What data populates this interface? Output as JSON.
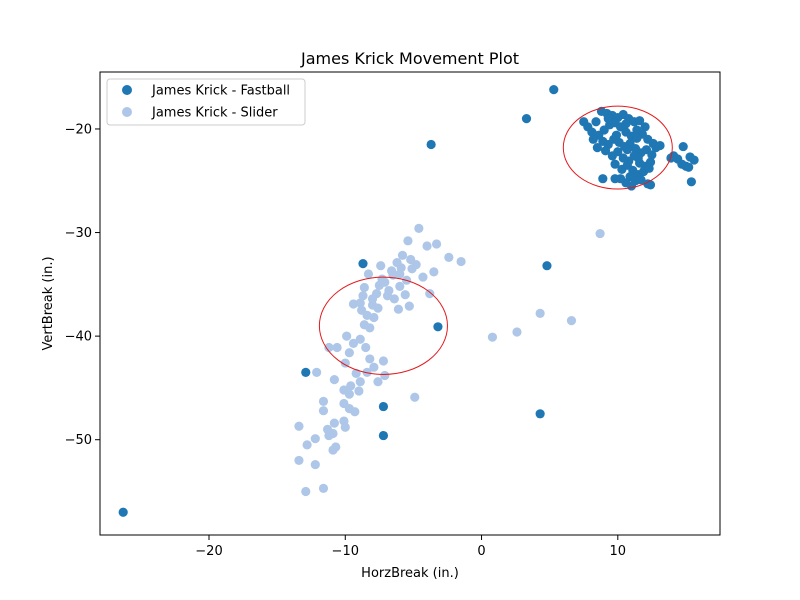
{
  "chart_data": {
    "type": "scatter",
    "title": "James Krick Movement Plot",
    "xlabel": "HorzBreak (in.)",
    "ylabel": "VertBreak (in.)",
    "xlim": [
      -28,
      17.5
    ],
    "ylim": [
      -59.2,
      -14.5
    ],
    "x_ticks": [
      -20,
      -10,
      0,
      10
    ],
    "y_ticks": [
      -20,
      -30,
      -40,
      -50
    ],
    "x_tick_labels": [
      "−20",
      "−10",
      "0",
      "10"
    ],
    "y_tick_labels": [
      "−20",
      "−30",
      "−40",
      "−50"
    ],
    "grid": false,
    "legend_position": "top-left",
    "series": [
      {
        "name": "James Krick - Fastball",
        "color": "#1f77b4",
        "points": [
          [
            5.3,
            -16.2
          ],
          [
            3.3,
            -19.0
          ],
          [
            -3.7,
            -21.5
          ],
          [
            -8.7,
            -33.0
          ],
          [
            4.8,
            -33.2
          ],
          [
            -3.2,
            -39.1
          ],
          [
            -12.9,
            -43.5
          ],
          [
            -7.2,
            -46.8
          ],
          [
            -7.2,
            -49.6
          ],
          [
            4.3,
            -47.5
          ],
          [
            -26.3,
            -57.0
          ],
          [
            8.8,
            -18.3
          ],
          [
            9.2,
            -18.5
          ],
          [
            9.6,
            -18.7
          ],
          [
            10.0,
            -18.9
          ],
          [
            10.4,
            -18.6
          ],
          [
            10.8,
            -19.0
          ],
          [
            11.2,
            -19.3
          ],
          [
            11.6,
            -19.2
          ],
          [
            12.0,
            -19.8
          ],
          [
            8.4,
            -19.3
          ],
          [
            7.8,
            -19.8
          ],
          [
            7.5,
            -19.3
          ],
          [
            8.1,
            -20.3
          ],
          [
            8.6,
            -20.6
          ],
          [
            9.0,
            -20.1
          ],
          [
            9.4,
            -19.6
          ],
          [
            9.8,
            -19.4
          ],
          [
            10.2,
            -19.8
          ],
          [
            10.6,
            -20.3
          ],
          [
            11.0,
            -20.7
          ],
          [
            11.4,
            -20.1
          ],
          [
            11.8,
            -20.5
          ],
          [
            12.2,
            -21.0
          ],
          [
            12.6,
            -21.4
          ],
          [
            13.1,
            -21.6
          ],
          [
            8.2,
            -21.0
          ],
          [
            8.9,
            -21.2
          ],
          [
            9.3,
            -21.5
          ],
          [
            9.7,
            -21.0
          ],
          [
            10.1,
            -21.3
          ],
          [
            10.5,
            -21.7
          ],
          [
            10.9,
            -21.4
          ],
          [
            11.3,
            -21.9
          ],
          [
            11.7,
            -22.3
          ],
          [
            12.1,
            -22.0
          ],
          [
            12.5,
            -22.5
          ],
          [
            9.1,
            -22.1
          ],
          [
            9.6,
            -22.6
          ],
          [
            10.0,
            -22.2
          ],
          [
            10.4,
            -22.8
          ],
          [
            10.8,
            -23.1
          ],
          [
            11.2,
            -22.6
          ],
          [
            11.6,
            -23.3
          ],
          [
            12.0,
            -23.6
          ],
          [
            12.4,
            -23.2
          ],
          [
            9.8,
            -23.4
          ],
          [
            10.3,
            -23.9
          ],
          [
            10.7,
            -23.5
          ],
          [
            11.1,
            -24.0
          ],
          [
            11.5,
            -24.4
          ],
          [
            11.9,
            -24.1
          ],
          [
            10.9,
            -24.6
          ],
          [
            11.3,
            -25.0
          ],
          [
            11.7,
            -24.9
          ],
          [
            12.2,
            -25.3
          ],
          [
            10.6,
            -25.2
          ],
          [
            10.2,
            -24.8
          ],
          [
            9.8,
            -24.8
          ],
          [
            12.4,
            -25.4
          ],
          [
            11.0,
            -25.5
          ],
          [
            13.9,
            -22.8
          ],
          [
            14.1,
            -22.6
          ],
          [
            14.4,
            -22.9
          ],
          [
            14.7,
            -23.4
          ],
          [
            15.0,
            -23.6
          ],
          [
            15.2,
            -23.7
          ],
          [
            15.3,
            -22.7
          ],
          [
            15.6,
            -23.0
          ],
          [
            14.8,
            -21.7
          ],
          [
            15.4,
            -25.1
          ],
          [
            8.9,
            -24.8
          ],
          [
            9.3,
            -19.0
          ],
          [
            10.6,
            -19.5
          ],
          [
            11.4,
            -20.9
          ],
          [
            12.8,
            -21.8
          ],
          [
            8.5,
            -21.8
          ],
          [
            9.9,
            -20.6
          ],
          [
            10.7,
            -22.0
          ],
          [
            11.5,
            -22.8
          ],
          [
            12.3,
            -23.8
          ]
        ]
      },
      {
        "name": "James Krick - Slider",
        "color": "#aec7e8",
        "points": [
          [
            8.7,
            -30.1
          ],
          [
            4.3,
            -37.8
          ],
          [
            6.6,
            -38.5
          ],
          [
            2.6,
            -39.6
          ],
          [
            0.8,
            -40.1
          ],
          [
            -4.9,
            -45.9
          ],
          [
            -1.5,
            -32.8
          ],
          [
            -2.4,
            -32.4
          ],
          [
            -4.6,
            -29.6
          ],
          [
            -4.0,
            -31.3
          ],
          [
            -3.3,
            -31.1
          ],
          [
            -3.5,
            -33.8
          ],
          [
            -4.3,
            -34.3
          ],
          [
            -3.8,
            -35.9
          ],
          [
            -5.4,
            -30.8
          ],
          [
            -5.8,
            -32.2
          ],
          [
            -6.2,
            -32.9
          ],
          [
            -5.1,
            -33.5
          ],
          [
            -5.5,
            -34.6
          ],
          [
            -6.0,
            -35.2
          ],
          [
            -6.5,
            -34.1
          ],
          [
            -6.8,
            -35.6
          ],
          [
            -7.1,
            -34.8
          ],
          [
            -7.4,
            -33.2
          ],
          [
            -7.7,
            -35.9
          ],
          [
            -8.0,
            -36.4
          ],
          [
            -8.3,
            -34.0
          ],
          [
            -8.6,
            -35.3
          ],
          [
            -8.9,
            -36.8
          ],
          [
            -9.4,
            -36.9
          ],
          [
            -7.6,
            -37.3
          ],
          [
            -7.9,
            -38.2
          ],
          [
            -8.4,
            -38.0
          ],
          [
            -8.6,
            -38.9
          ],
          [
            -8.2,
            -39.2
          ],
          [
            -8.8,
            -37.5
          ],
          [
            -6.4,
            -36.4
          ],
          [
            -6.1,
            -37.4
          ],
          [
            -5.6,
            -36.0
          ],
          [
            -5.3,
            -37.1
          ],
          [
            -5.9,
            -33.4
          ],
          [
            -6.6,
            -33.7
          ],
          [
            -7.3,
            -34.5
          ],
          [
            -9.9,
            -40.0
          ],
          [
            -9.4,
            -40.7
          ],
          [
            -8.9,
            -40.3
          ],
          [
            -8.5,
            -41.1
          ],
          [
            -9.7,
            -41.6
          ],
          [
            -10.0,
            -42.6
          ],
          [
            -10.6,
            -41.1
          ],
          [
            -8.2,
            -42.2
          ],
          [
            -7.9,
            -43.0
          ],
          [
            -7.2,
            -42.4
          ],
          [
            -7.1,
            -43.8
          ],
          [
            -7.6,
            -44.4
          ],
          [
            -8.4,
            -43.5
          ],
          [
            -9.2,
            -43.6
          ],
          [
            -8.9,
            -44.4
          ],
          [
            -9.6,
            -44.8
          ],
          [
            -9.0,
            -45.3
          ],
          [
            -9.7,
            -45.6
          ],
          [
            -10.1,
            -45.2
          ],
          [
            -10.8,
            -44.2
          ],
          [
            -11.2,
            -41.1
          ],
          [
            -12.1,
            -43.5
          ],
          [
            -11.6,
            -46.3
          ],
          [
            -11.6,
            -47.2
          ],
          [
            -10.1,
            -46.5
          ],
          [
            -9.7,
            -47.0
          ],
          [
            -9.3,
            -47.3
          ],
          [
            -10.1,
            -48.2
          ],
          [
            -10.0,
            -48.8
          ],
          [
            -10.8,
            -48.4
          ],
          [
            -11.3,
            -49.0
          ],
          [
            -11.2,
            -49.6
          ],
          [
            -10.7,
            -50.7
          ],
          [
            -10.9,
            -51.0
          ],
          [
            -12.2,
            -49.9
          ],
          [
            -12.8,
            -50.5
          ],
          [
            -13.4,
            -48.7
          ],
          [
            -13.4,
            -52.0
          ],
          [
            -12.2,
            -52.4
          ],
          [
            -12.9,
            -55.0
          ],
          [
            -11.6,
            -54.7
          ],
          [
            -10.9,
            -49.4
          ],
          [
            -6.0,
            -34.0
          ],
          [
            -5.2,
            -32.6
          ],
          [
            -4.8,
            -33.1
          ],
          [
            -6.9,
            -36.1
          ],
          [
            -7.5,
            -35.1
          ],
          [
            -8.0,
            -37.0
          ],
          [
            -8.7,
            -36.1
          ]
        ]
      }
    ],
    "annotations": [
      {
        "kind": "ellipse",
        "color": "#e31a1c",
        "center": [
          10.0,
          -21.8
        ],
        "radius_x": 4.0,
        "radius_y": 4.0
      },
      {
        "kind": "ellipse",
        "color": "#e31a1c",
        "center": [
          -7.2,
          -39.0
        ],
        "radius_x": 4.7,
        "radius_y": 4.7
      }
    ]
  }
}
